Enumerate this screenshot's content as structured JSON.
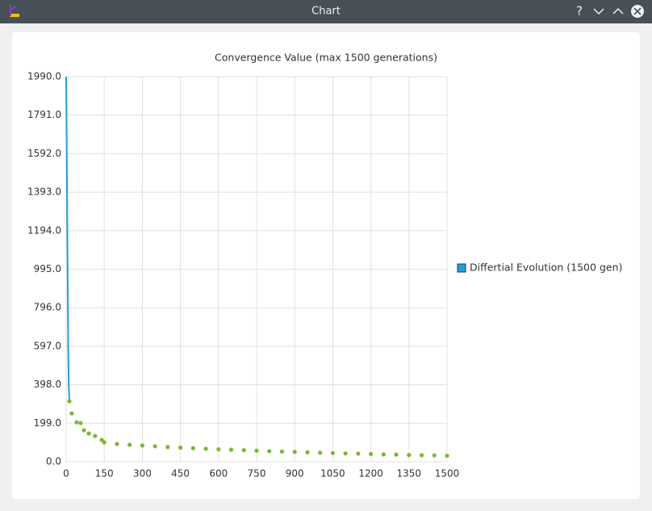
{
  "window": {
    "title": "Chart",
    "help": "?"
  },
  "chart_data": {
    "type": "line",
    "title": "Convergence Value (max 1500 generations)",
    "xlim": [
      0,
      1500
    ],
    "ylim": [
      0,
      1990
    ],
    "xticks": [
      0,
      150,
      300,
      450,
      600,
      750,
      900,
      1050,
      1200,
      1350,
      1500
    ],
    "yticks": [
      {
        "value": 0,
        "label": "0.0"
      },
      {
        "value": 199,
        "label": "199.0"
      },
      {
        "value": 398,
        "label": "398.0"
      },
      {
        "value": 597,
        "label": "597.0"
      },
      {
        "value": 796,
        "label": "796.0"
      },
      {
        "value": 995,
        "label": "995.0"
      },
      {
        "value": 1194,
        "label": "1194.0"
      },
      {
        "value": 1393,
        "label": "1393.0"
      },
      {
        "value": 1592,
        "label": "1592.0"
      },
      {
        "value": 1791,
        "label": "1791.0"
      },
      {
        "value": 1990,
        "label": "1990.0"
      }
    ],
    "grid": true,
    "legend": "right",
    "series": [
      {
        "name": "Differtial Evolution (1500 gen)",
        "type": "line",
        "color": "#209fdf",
        "x": [
          0,
          2,
          4,
          6,
          8,
          10,
          12.7
        ],
        "values": [
          1990,
          1670,
          1300,
          950,
          600,
          400,
          313
        ]
      },
      {
        "type": "scatter",
        "color": "#7cb82f",
        "x": [
          12.7,
          22,
          41,
          57,
          70,
          89,
          114,
          140,
          150,
          200,
          250,
          300,
          350,
          400,
          450,
          500,
          550,
          600,
          650,
          700,
          750,
          800,
          850,
          900,
          950,
          1000,
          1050,
          1100,
          1150,
          1200,
          1250,
          1300,
          1350,
          1400,
          1450,
          1500
        ],
        "values": [
          313,
          250,
          204,
          200,
          163,
          146,
          133,
          113,
          100,
          92,
          88,
          84,
          80,
          76,
          73,
          70,
          67,
          64,
          62,
          60,
          57,
          55,
          53,
          51,
          49,
          47,
          45,
          43,
          42,
          40,
          38,
          37,
          35,
          34,
          33,
          31
        ]
      }
    ]
  }
}
